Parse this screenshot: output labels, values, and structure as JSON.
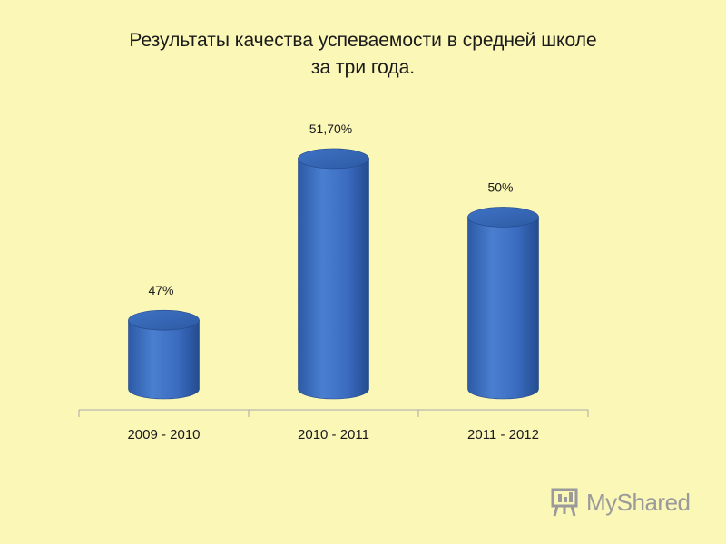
{
  "slide": {
    "title_line1": "Результаты качества успеваемости в средней школе",
    "title_line2": "за три года."
  },
  "chart_data": {
    "type": "bar",
    "categories": [
      "2009 - 2010",
      "2010 - 2011",
      "2011 - 2012"
    ],
    "values": [
      47,
      51.7,
      50
    ],
    "data_labels": [
      "47%",
      "51,70%",
      "50%"
    ],
    "ylim": [
      45,
      52.2
    ],
    "bar_color": "#3a6bbf",
    "grid": false,
    "legend": "none"
  },
  "watermark": {
    "text": "MyShared",
    "icon": "presentation-board-icon"
  },
  "colors": {
    "background": "#fbf7b7",
    "bar": "#3a6bbf",
    "axis": "#aaaaaa"
  }
}
